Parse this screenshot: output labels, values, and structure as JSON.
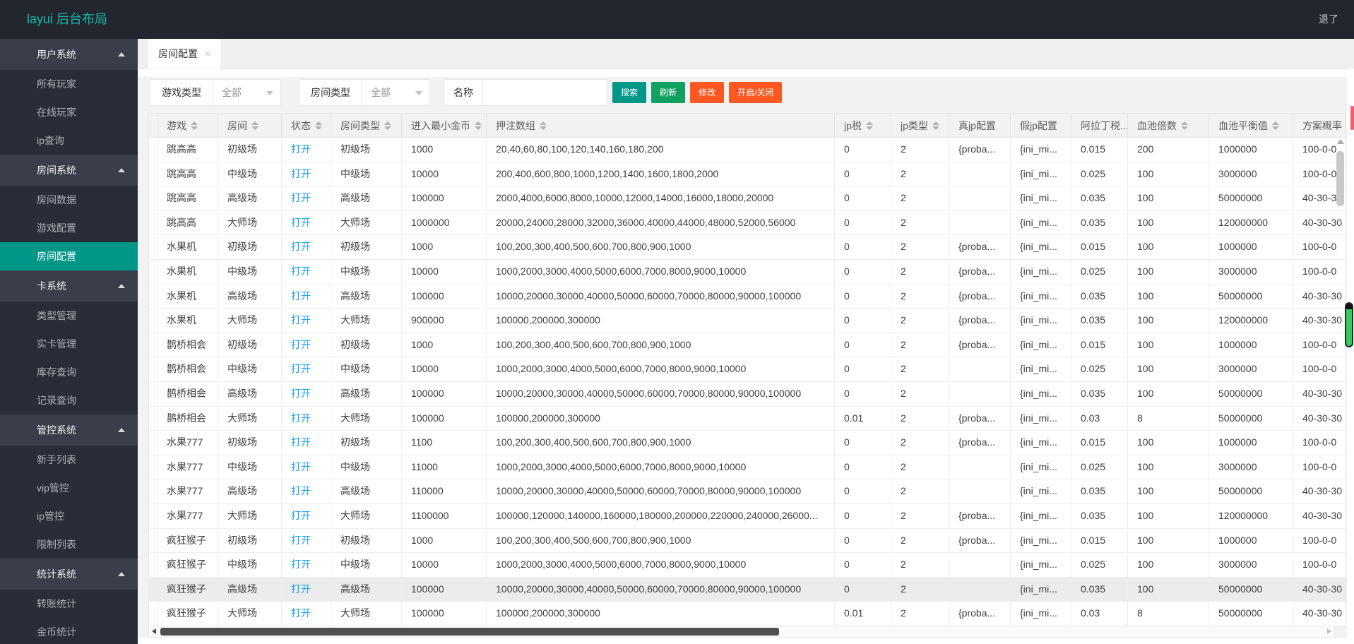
{
  "topbar": {
    "logo": "layui 后台布局",
    "logout": "退了"
  },
  "sidebar": {
    "groups": [
      {
        "label": "用户系统",
        "items": [
          {
            "label": "所有玩家"
          },
          {
            "label": "在线玩家"
          },
          {
            "label": "ip查询"
          }
        ]
      },
      {
        "label": "房间系统",
        "items": [
          {
            "label": "房间数据"
          },
          {
            "label": "游戏配置"
          },
          {
            "label": "房间配置",
            "selected": true
          }
        ]
      },
      {
        "label": "卡系统",
        "items": [
          {
            "label": "类型管理"
          },
          {
            "label": "实卡管理"
          },
          {
            "label": "库存查询"
          },
          {
            "label": "记录查询"
          }
        ]
      },
      {
        "label": "管控系统",
        "items": [
          {
            "label": "新手列表"
          },
          {
            "label": "vip管控"
          },
          {
            "label": "ip管控"
          },
          {
            "label": "限制列表"
          }
        ]
      },
      {
        "label": "统计系统",
        "items": [
          {
            "label": "转账统计"
          },
          {
            "label": "金币统计"
          }
        ]
      }
    ]
  },
  "tab": {
    "label": "房间配置",
    "close": "×"
  },
  "filters": {
    "game_type_label": "游戏类型",
    "game_type_value": "全部",
    "room_type_label": "房间类型",
    "room_type_value": "全部",
    "name_label": "名称",
    "name_value": "",
    "buttons": [
      {
        "name": "search",
        "label": "搜索",
        "color": "#009688"
      },
      {
        "name": "refresh",
        "label": "刷新",
        "color": "#10a05f"
      },
      {
        "name": "modify",
        "label": "修改",
        "color": "#ff5722"
      },
      {
        "name": "toggle-open-close",
        "label": "开启/关闭",
        "color": "#ff5722"
      }
    ]
  },
  "colors": {
    "accent": "#009688",
    "link": "#1e9fff",
    "danger": "#ff5722",
    "topbar": "#23262e"
  },
  "table": {
    "columns": [
      {
        "field": "spacer",
        "label": "",
        "sort": false
      },
      {
        "field": "game",
        "label": "游戏",
        "sort": true
      },
      {
        "field": "room",
        "label": "房间",
        "sort": true
      },
      {
        "field": "status",
        "label": "状态",
        "sort": true
      },
      {
        "field": "room_type",
        "label": "房间类型",
        "sort": true
      },
      {
        "field": "min_coin",
        "label": "进入最小金币",
        "sort": true
      },
      {
        "field": "bet_array",
        "label": "押注数组",
        "sort": true
      },
      {
        "field": "jp_tax",
        "label": "jp税",
        "sort": true
      },
      {
        "field": "jp_type",
        "label": "jp类型",
        "sort": true
      },
      {
        "field": "real_jp",
        "label": "真jp配置",
        "sort": false
      },
      {
        "field": "fake_jp",
        "label": "假jp配置",
        "sort": false
      },
      {
        "field": "aladdin_tax",
        "label": "阿拉丁税...",
        "sort": true
      },
      {
        "field": "pool_multiple",
        "label": "血池倍数",
        "sort": true
      },
      {
        "field": "pool_balance",
        "label": "血池平衡值",
        "sort": true
      },
      {
        "field": "plan_prob",
        "label": "方案概率",
        "sort": false
      }
    ],
    "rows": [
      {
        "game": "跳高高",
        "room": "初级场",
        "status": "打开",
        "room_type": "初级场",
        "min_coin": "1000",
        "bet_array": "20,40,60,80,100,120,140,160,180,200",
        "jp_tax": "0",
        "jp_type": "2",
        "real_jp": "{proba...",
        "fake_jp": "{ini_mi...",
        "aladdin_tax": "0.015",
        "pool_multiple": "200",
        "pool_balance": "1000000",
        "plan_prob": "100-0-0"
      },
      {
        "game": "跳高高",
        "room": "中级场",
        "status": "打开",
        "room_type": "中级场",
        "min_coin": "10000",
        "bet_array": "200,400,600,800,1000,1200,1400,1600,1800,2000",
        "jp_tax": "0",
        "jp_type": "2",
        "real_jp": "",
        "fake_jp": "{ini_mi...",
        "aladdin_tax": "0.025",
        "pool_multiple": "100",
        "pool_balance": "3000000",
        "plan_prob": "100-0-0"
      },
      {
        "game": "跳高高",
        "room": "高级场",
        "status": "打开",
        "room_type": "高级场",
        "min_coin": "100000",
        "bet_array": "2000,4000,6000,8000,10000,12000,14000,16000,18000,20000",
        "jp_tax": "0",
        "jp_type": "2",
        "real_jp": "",
        "fake_jp": "{ini_mi...",
        "aladdin_tax": "0.035",
        "pool_multiple": "100",
        "pool_balance": "50000000",
        "plan_prob": "40-30-30"
      },
      {
        "game": "跳高高",
        "room": "大师场",
        "status": "打开",
        "room_type": "大师场",
        "min_coin": "1000000",
        "bet_array": "20000,24000,28000,32000,36000,40000,44000,48000,52000,56000",
        "jp_tax": "0",
        "jp_type": "2",
        "real_jp": "",
        "fake_jp": "{ini_mi...",
        "aladdin_tax": "0.035",
        "pool_multiple": "100",
        "pool_balance": "120000000",
        "plan_prob": "40-30-30"
      },
      {
        "game": "水果机",
        "room": "初级场",
        "status": "打开",
        "room_type": "初级场",
        "min_coin": "1000",
        "bet_array": "100,200,300,400,500,600,700,800,900,1000",
        "jp_tax": "0",
        "jp_type": "2",
        "real_jp": "{proba...",
        "fake_jp": "{ini_mi...",
        "aladdin_tax": "0.015",
        "pool_multiple": "100",
        "pool_balance": "1000000",
        "plan_prob": "100-0-0"
      },
      {
        "game": "水果机",
        "room": "中级场",
        "status": "打开",
        "room_type": "中级场",
        "min_coin": "10000",
        "bet_array": "1000,2000,3000,4000,5000,6000,7000,8000,9000,10000",
        "jp_tax": "0",
        "jp_type": "2",
        "real_jp": "{proba...",
        "fake_jp": "{ini_mi...",
        "aladdin_tax": "0.025",
        "pool_multiple": "100",
        "pool_balance": "3000000",
        "plan_prob": "100-0-0"
      },
      {
        "game": "水果机",
        "room": "高级场",
        "status": "打开",
        "room_type": "高级场",
        "min_coin": "100000",
        "bet_array": "10000,20000,30000,40000,50000,60000,70000,80000,90000,100000",
        "jp_tax": "0",
        "jp_type": "2",
        "real_jp": "{proba...",
        "fake_jp": "{ini_mi...",
        "aladdin_tax": "0.035",
        "pool_multiple": "100",
        "pool_balance": "50000000",
        "plan_prob": "40-30-30"
      },
      {
        "game": "水果机",
        "room": "大师场",
        "status": "打开",
        "room_type": "大师场",
        "min_coin": "900000",
        "bet_array": "100000,200000,300000",
        "jp_tax": "0",
        "jp_type": "2",
        "real_jp": "{proba...",
        "fake_jp": "{ini_mi...",
        "aladdin_tax": "0.035",
        "pool_multiple": "100",
        "pool_balance": "120000000",
        "plan_prob": "40-30-30"
      },
      {
        "game": "鹊桥相会",
        "room": "初级场",
        "status": "打开",
        "room_type": "初级场",
        "min_coin": "1000",
        "bet_array": "100,200,300,400,500,600,700,800,900,1000",
        "jp_tax": "0",
        "jp_type": "2",
        "real_jp": "{proba...",
        "fake_jp": "{ini_mi...",
        "aladdin_tax": "0.015",
        "pool_multiple": "100",
        "pool_balance": "1000000",
        "plan_prob": "100-0-0"
      },
      {
        "game": "鹊桥相会",
        "room": "中级场",
        "status": "打开",
        "room_type": "中级场",
        "min_coin": "10000",
        "bet_array": "1000,2000,3000,4000,5000,6000,7000,8000,9000,10000",
        "jp_tax": "0",
        "jp_type": "2",
        "real_jp": "",
        "fake_jp": "{ini_mi...",
        "aladdin_tax": "0.025",
        "pool_multiple": "100",
        "pool_balance": "3000000",
        "plan_prob": "100-0-0"
      },
      {
        "game": "鹊桥相会",
        "room": "高级场",
        "status": "打开",
        "room_type": "高级场",
        "min_coin": "100000",
        "bet_array": "10000,20000,30000,40000,50000,60000,70000,80000,90000,100000",
        "jp_tax": "0",
        "jp_type": "2",
        "real_jp": "",
        "fake_jp": "{ini_mi...",
        "aladdin_tax": "0.035",
        "pool_multiple": "100",
        "pool_balance": "50000000",
        "plan_prob": "40-30-30"
      },
      {
        "game": "鹊桥相会",
        "room": "大师场",
        "status": "打开",
        "room_type": "大师场",
        "min_coin": "100000",
        "bet_array": "100000,200000,300000",
        "jp_tax": "0.01",
        "jp_type": "2",
        "real_jp": "{proba...",
        "fake_jp": "{ini_mi...",
        "aladdin_tax": "0.03",
        "pool_multiple": "8",
        "pool_balance": "50000000",
        "plan_prob": "40-30-30"
      },
      {
        "game": "水果777",
        "room": "初级场",
        "status": "打开",
        "room_type": "初级场",
        "min_coin": "1100",
        "bet_array": "100,200,300,400,500,600,700,800,900,1000",
        "jp_tax": "0",
        "jp_type": "2",
        "real_jp": "{proba...",
        "fake_jp": "{ini_mi...",
        "aladdin_tax": "0.015",
        "pool_multiple": "100",
        "pool_balance": "1000000",
        "plan_prob": "100-0-0"
      },
      {
        "game": "水果777",
        "room": "中级场",
        "status": "打开",
        "room_type": "中级场",
        "min_coin": "11000",
        "bet_array": "1000,2000,3000,4000,5000,6000,7000,8000,9000,10000",
        "jp_tax": "0",
        "jp_type": "2",
        "real_jp": "",
        "fake_jp": "{ini_mi...",
        "aladdin_tax": "0.025",
        "pool_multiple": "100",
        "pool_balance": "3000000",
        "plan_prob": "100-0-0"
      },
      {
        "game": "水果777",
        "room": "高级场",
        "status": "打开",
        "room_type": "高级场",
        "min_coin": "110000",
        "bet_array": "10000,20000,30000,40000,50000,60000,70000,80000,90000,100000",
        "jp_tax": "0",
        "jp_type": "2",
        "real_jp": "",
        "fake_jp": "{ini_mi...",
        "aladdin_tax": "0.035",
        "pool_multiple": "100",
        "pool_balance": "50000000",
        "plan_prob": "40-30-30"
      },
      {
        "game": "水果777",
        "room": "大师场",
        "status": "打开",
        "room_type": "大师场",
        "min_coin": "1100000",
        "bet_array": "100000,120000,140000,160000,180000,200000,220000,240000,26000...",
        "jp_tax": "0",
        "jp_type": "2",
        "real_jp": "{proba...",
        "fake_jp": "{ini_mi...",
        "aladdin_tax": "0.035",
        "pool_multiple": "100",
        "pool_balance": "120000000",
        "plan_prob": "40-30-30"
      },
      {
        "game": "疯狂猴子",
        "room": "初级场",
        "status": "打开",
        "room_type": "初级场",
        "min_coin": "1000",
        "bet_array": "100,200,300,400,500,600,700,800,900,1000",
        "jp_tax": "0",
        "jp_type": "2",
        "real_jp": "{proba...",
        "fake_jp": "{ini_mi...",
        "aladdin_tax": "0.015",
        "pool_multiple": "100",
        "pool_balance": "1000000",
        "plan_prob": "100-0-0"
      },
      {
        "game": "疯狂猴子",
        "room": "中级场",
        "status": "打开",
        "room_type": "中级场",
        "min_coin": "10000",
        "bet_array": "1000,2000,3000,4000,5000,6000,7000,8000,9000,10000",
        "jp_tax": "0",
        "jp_type": "2",
        "real_jp": "",
        "fake_jp": "{ini_mi...",
        "aladdin_tax": "0.025",
        "pool_multiple": "100",
        "pool_balance": "3000000",
        "plan_prob": "100-0-0"
      },
      {
        "game": "疯狂猴子",
        "room": "高级场",
        "status": "打开",
        "room_type": "高级场",
        "min_coin": "100000",
        "bet_array": "10000,20000,30000,40000,50000,60000,70000,80000,90000,100000",
        "jp_tax": "0",
        "jp_type": "2",
        "real_jp": "",
        "fake_jp": "{ini_mi...",
        "aladdin_tax": "0.035",
        "pool_multiple": "100",
        "pool_balance": "50000000",
        "plan_prob": "40-30-30",
        "highlighted": true
      },
      {
        "game": "疯狂猴子",
        "room": "大师场",
        "status": "打开",
        "room_type": "大师场",
        "min_coin": "100000",
        "bet_array": "100000,200000,300000",
        "jp_tax": "0.01",
        "jp_type": "2",
        "real_jp": "{proba...",
        "fake_jp": "{ini_mi...",
        "aladdin_tax": "0.03",
        "pool_multiple": "8",
        "pool_balance": "50000000",
        "plan_prob": "40-30-30"
      }
    ]
  }
}
